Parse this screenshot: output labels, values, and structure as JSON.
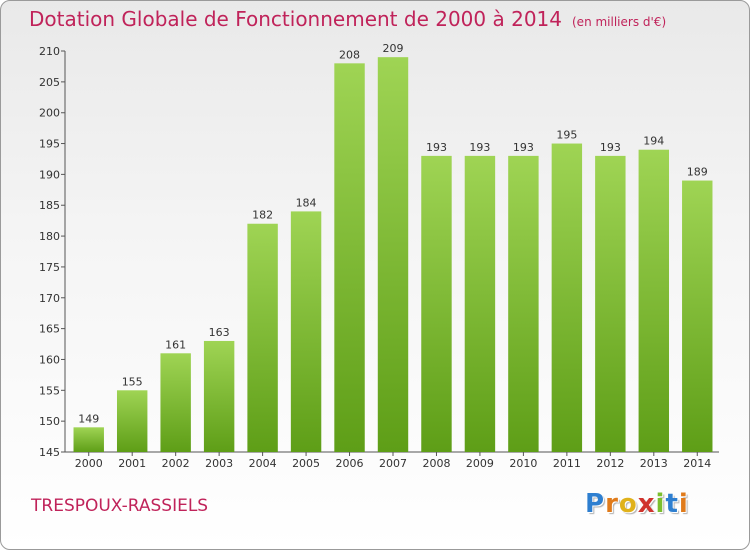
{
  "chart_data": {
    "type": "bar",
    "title": "Dotation Globale de Fonctionnement de 2000 à 2014",
    "subtitle": "(en milliers d'€)",
    "categories": [
      "2000",
      "2001",
      "2002",
      "2003",
      "2004",
      "2005",
      "2006",
      "2007",
      "2008",
      "2009",
      "2010",
      "2011",
      "2012",
      "2013",
      "2014"
    ],
    "values": [
      149,
      155,
      161,
      163,
      182,
      184,
      208,
      209,
      193,
      193,
      193,
      195,
      193,
      194,
      189
    ],
    "ylim": [
      145,
      210
    ],
    "yticks": [
      145,
      150,
      155,
      160,
      165,
      170,
      175,
      180,
      185,
      190,
      195,
      200,
      205,
      210
    ],
    "grid": false,
    "bar_color": "#7cbf2e"
  },
  "footer": {
    "commune": "TRESPOUX-RASSIELS",
    "brand_letters": [
      {
        "ch": "P",
        "color": "#2e7fd0"
      },
      {
        "ch": "r",
        "color": "#e07b1b"
      },
      {
        "ch": "o",
        "color": "#e0b21b"
      },
      {
        "ch": "x",
        "color": "#d0342e"
      },
      {
        "ch": "i",
        "color": "#7cbf2e"
      },
      {
        "ch": "t",
        "color": "#2e7fd0"
      },
      {
        "ch": "i",
        "color": "#e07b1b"
      }
    ]
  }
}
